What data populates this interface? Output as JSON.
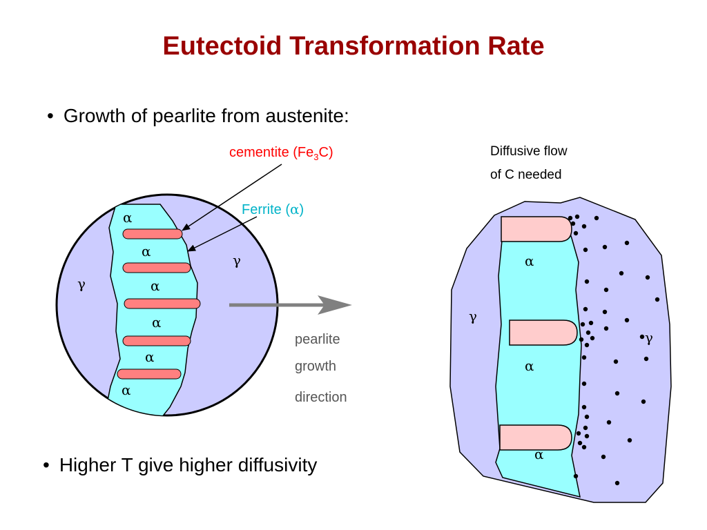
{
  "slide": {
    "title": "Eutectoid Transformation Rate",
    "bullets": [
      "Growth of pearlite from austenite:",
      "Higher T give higher diffusivity"
    ],
    "bullet_marker": "•"
  },
  "left_diagram": {
    "cementite_label_main": "cementite (Fe",
    "cementite_label_sub": "3",
    "cementite_label_end": "C)",
    "ferrite_label_main": "Ferrite (",
    "ferrite_label_symbol": "α",
    "ferrite_label_end": ")",
    "alpha": "α",
    "gamma": "γ",
    "cementite_color": "#ff0000",
    "ferrite_color": "#00b3c8",
    "austenite_fill": "#ccccff",
    "ferrite_fill": "#99ffff",
    "cementite_fill": "#ff8080"
  },
  "arrow": {
    "line1": "pearlite",
    "line2": "growth",
    "line3": "direction",
    "color": "#808080"
  },
  "right_diagram": {
    "caption_line1": "Diffusive flow",
    "caption_line2": "of C needed",
    "alpha": "α",
    "gamma": "γ",
    "cementite_fill": "#ffcccc",
    "ferrite_fill": "#99ffff",
    "austenite_fill": "#ccccff"
  }
}
